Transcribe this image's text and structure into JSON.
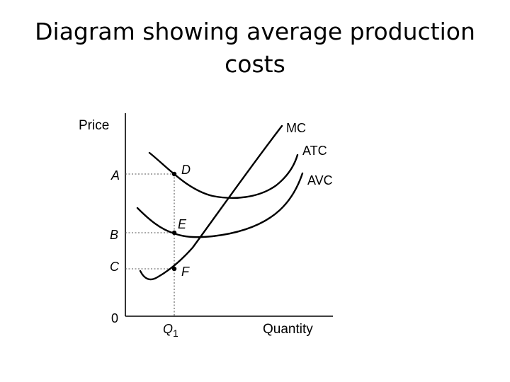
{
  "slide": {
    "title_line1": "Diagram showing average production",
    "title_line2": "costs"
  },
  "axes": {
    "y_label": "Price",
    "x_label": "Quantity",
    "origin": "0",
    "q_tick": "Q",
    "q_sub": "1"
  },
  "price_ticks": {
    "a": "A",
    "b": "B",
    "c": "C"
  },
  "points": {
    "d": "D",
    "e": "E",
    "f": "F"
  },
  "curves": {
    "mc": "MC",
    "atc": "ATC",
    "avc": "AVC"
  },
  "colors": {
    "ink": "#000000",
    "guide": "#555555"
  }
}
